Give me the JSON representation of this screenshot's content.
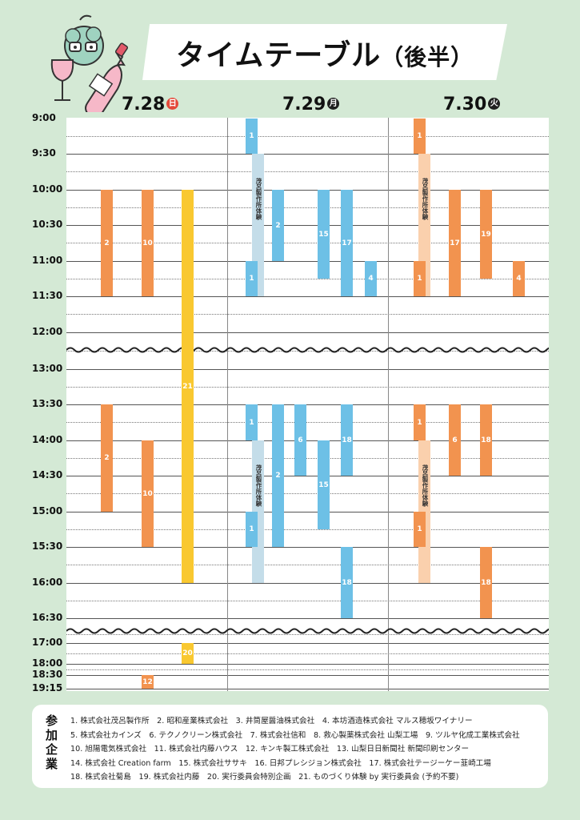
{
  "title": "タイムテーブル",
  "title_sub": "（後半）",
  "colors": {
    "orange": "#f2934f",
    "yellow": "#f9c830",
    "blue": "#6dc0e6",
    "lightblue": "#c4dde9",
    "peach": "#fad0ad",
    "bg": "#d4e9d5",
    "sun": "#e4493a",
    "dark": "#1f1f1f"
  },
  "days": [
    {
      "date": "7.28",
      "dow": "日"
    },
    {
      "date": "7.29",
      "dow": "月"
    },
    {
      "date": "7.30",
      "dow": "火"
    }
  ],
  "times": [
    "9:00",
    "9:30",
    "10:00",
    "10:30",
    "11:00",
    "11:30",
    "12:00",
    "13:00",
    "13:30",
    "14:00",
    "14:30",
    "15:00",
    "15:30",
    "16:00",
    "16:30",
    "17:00",
    "18:00",
    "18:30",
    "19:15"
  ],
  "sessions": [
    {
      "day": 0,
      "lane": 0,
      "label": "2",
      "color": "orange",
      "start": "10:00",
      "end": "11:30"
    },
    {
      "day": 0,
      "lane": 1,
      "label": "10",
      "color": "orange",
      "start": "10:00",
      "end": "11:30"
    },
    {
      "day": 0,
      "lane": 2,
      "label": "21",
      "color": "yellow",
      "start": "10:00",
      "end": "16:00"
    },
    {
      "day": 0,
      "lane": 0,
      "label": "2",
      "color": "orange",
      "start": "13:30",
      "end": "15:00"
    },
    {
      "day": 0,
      "lane": 1,
      "label": "10",
      "color": "orange",
      "start": "14:00",
      "end": "15:30"
    },
    {
      "day": 0,
      "lane": 2,
      "label": "20",
      "color": "yellow",
      "start": "17:00",
      "end": "18:00"
    },
    {
      "day": 0,
      "lane": 1,
      "label": "12",
      "color": "orange",
      "start": "18:30",
      "end": "19:15"
    },
    {
      "day": 1,
      "lane": 0,
      "label": "1",
      "color": "blue",
      "start": "9:00",
      "end": "9:30"
    },
    {
      "day": 1,
      "lane": 1,
      "label": "",
      "color": "lightblue",
      "start": "9:30",
      "end": "11:30",
      "note": "茂呂製作所体験"
    },
    {
      "day": 1,
      "lane": 0,
      "label": "1",
      "color": "blue",
      "start": "11:00",
      "end": "11:30"
    },
    {
      "day": 1,
      "lane": 2,
      "label": "2",
      "color": "blue",
      "start": "10:00",
      "end": "11:00"
    },
    {
      "day": 1,
      "lane": 4,
      "label": "15",
      "color": "blue",
      "start": "10:00",
      "end": "11:15"
    },
    {
      "day": 1,
      "lane": 5,
      "label": "17",
      "color": "blue",
      "start": "10:00",
      "end": "11:30"
    },
    {
      "day": 1,
      "lane": 6,
      "label": "4",
      "color": "blue",
      "start": "11:00",
      "end": "11:30"
    },
    {
      "day": 1,
      "lane": 0,
      "label": "1",
      "color": "blue",
      "start": "13:30",
      "end": "14:00"
    },
    {
      "day": 1,
      "lane": 1,
      "label": "",
      "color": "lightblue",
      "start": "14:00",
      "end": "16:00",
      "note": "茂呂製作所体験"
    },
    {
      "day": 1,
      "lane": 0,
      "label": "1",
      "color": "blue",
      "start": "15:00",
      "end": "15:30"
    },
    {
      "day": 1,
      "lane": 2,
      "label": "2",
      "color": "blue",
      "start": "13:30",
      "end": "15:30"
    },
    {
      "day": 1,
      "lane": 3,
      "label": "6",
      "color": "blue",
      "start": "13:30",
      "end": "14:30"
    },
    {
      "day": 1,
      "lane": 4,
      "label": "15",
      "color": "blue",
      "start": "14:00",
      "end": "15:15"
    },
    {
      "day": 1,
      "lane": 5,
      "label": "18",
      "color": "blue",
      "start": "13:30",
      "end": "14:30"
    },
    {
      "day": 1,
      "lane": 5,
      "label": "18",
      "color": "blue",
      "start": "15:30",
      "end": "16:30"
    },
    {
      "day": 2,
      "lane": 0,
      "label": "1",
      "color": "orange",
      "start": "9:00",
      "end": "9:30"
    },
    {
      "day": 2,
      "lane": 1,
      "label": "",
      "color": "peach",
      "start": "9:30",
      "end": "11:30",
      "note": "茂呂製作所体験"
    },
    {
      "day": 2,
      "lane": 0,
      "label": "1",
      "color": "orange",
      "start": "11:00",
      "end": "11:30"
    },
    {
      "day": 2,
      "lane": 2,
      "label": "17",
      "color": "orange",
      "start": "10:00",
      "end": "11:30"
    },
    {
      "day": 2,
      "lane": 3,
      "label": "19",
      "color": "orange",
      "start": "10:00",
      "end": "11:15"
    },
    {
      "day": 2,
      "lane": 4,
      "label": "4",
      "color": "orange",
      "start": "11:00",
      "end": "11:30"
    },
    {
      "day": 2,
      "lane": 0,
      "label": "1",
      "color": "orange",
      "start": "13:30",
      "end": "14:00"
    },
    {
      "day": 2,
      "lane": 1,
      "label": "",
      "color": "peach",
      "start": "14:00",
      "end": "16:00",
      "note": "茂呂製作所体験"
    },
    {
      "day": 2,
      "lane": 0,
      "label": "1",
      "color": "orange",
      "start": "15:00",
      "end": "15:30"
    },
    {
      "day": 2,
      "lane": 2,
      "label": "6",
      "color": "orange",
      "start": "13:30",
      "end": "14:30"
    },
    {
      "day": 2,
      "lane": 3,
      "label": "18",
      "color": "orange",
      "start": "13:30",
      "end": "14:30"
    },
    {
      "day": 2,
      "lane": 3,
      "label": "18",
      "color": "orange",
      "start": "15:30",
      "end": "16:30"
    }
  ],
  "legend": {
    "title": "参加企業",
    "lines": [
      "1. 株式会社茂呂製作所　2. 昭和産業株式会社　3. 井筒屋醤油株式会社　4. 本坊酒造株式会社 マルス穂坂ワイナリー",
      "5. 株式会社カインズ　6. テクノクリーン株式会社　7. 株式会社信和　8. 救心製薬株式会社 山梨工場　9. ツルヤ化成工業株式会社",
      "10. 旭陽電気株式会社　11. 株式会社内藤ハウス　12. キンキ製工株式会社　13. 山梨日日新聞社 新聞印刷センター",
      "14. 株式会社 Creation farm　15. 株式会社ササキ　16. 日邦プレシジョン株式会社　17. 株式会社テージーケー韮崎工場",
      "18. 株式会社菊島　19. 株式会社内藤　20. 実行委員会特別企画　21. ものづくり体験 by 実行委員会 (予約不要)"
    ]
  }
}
